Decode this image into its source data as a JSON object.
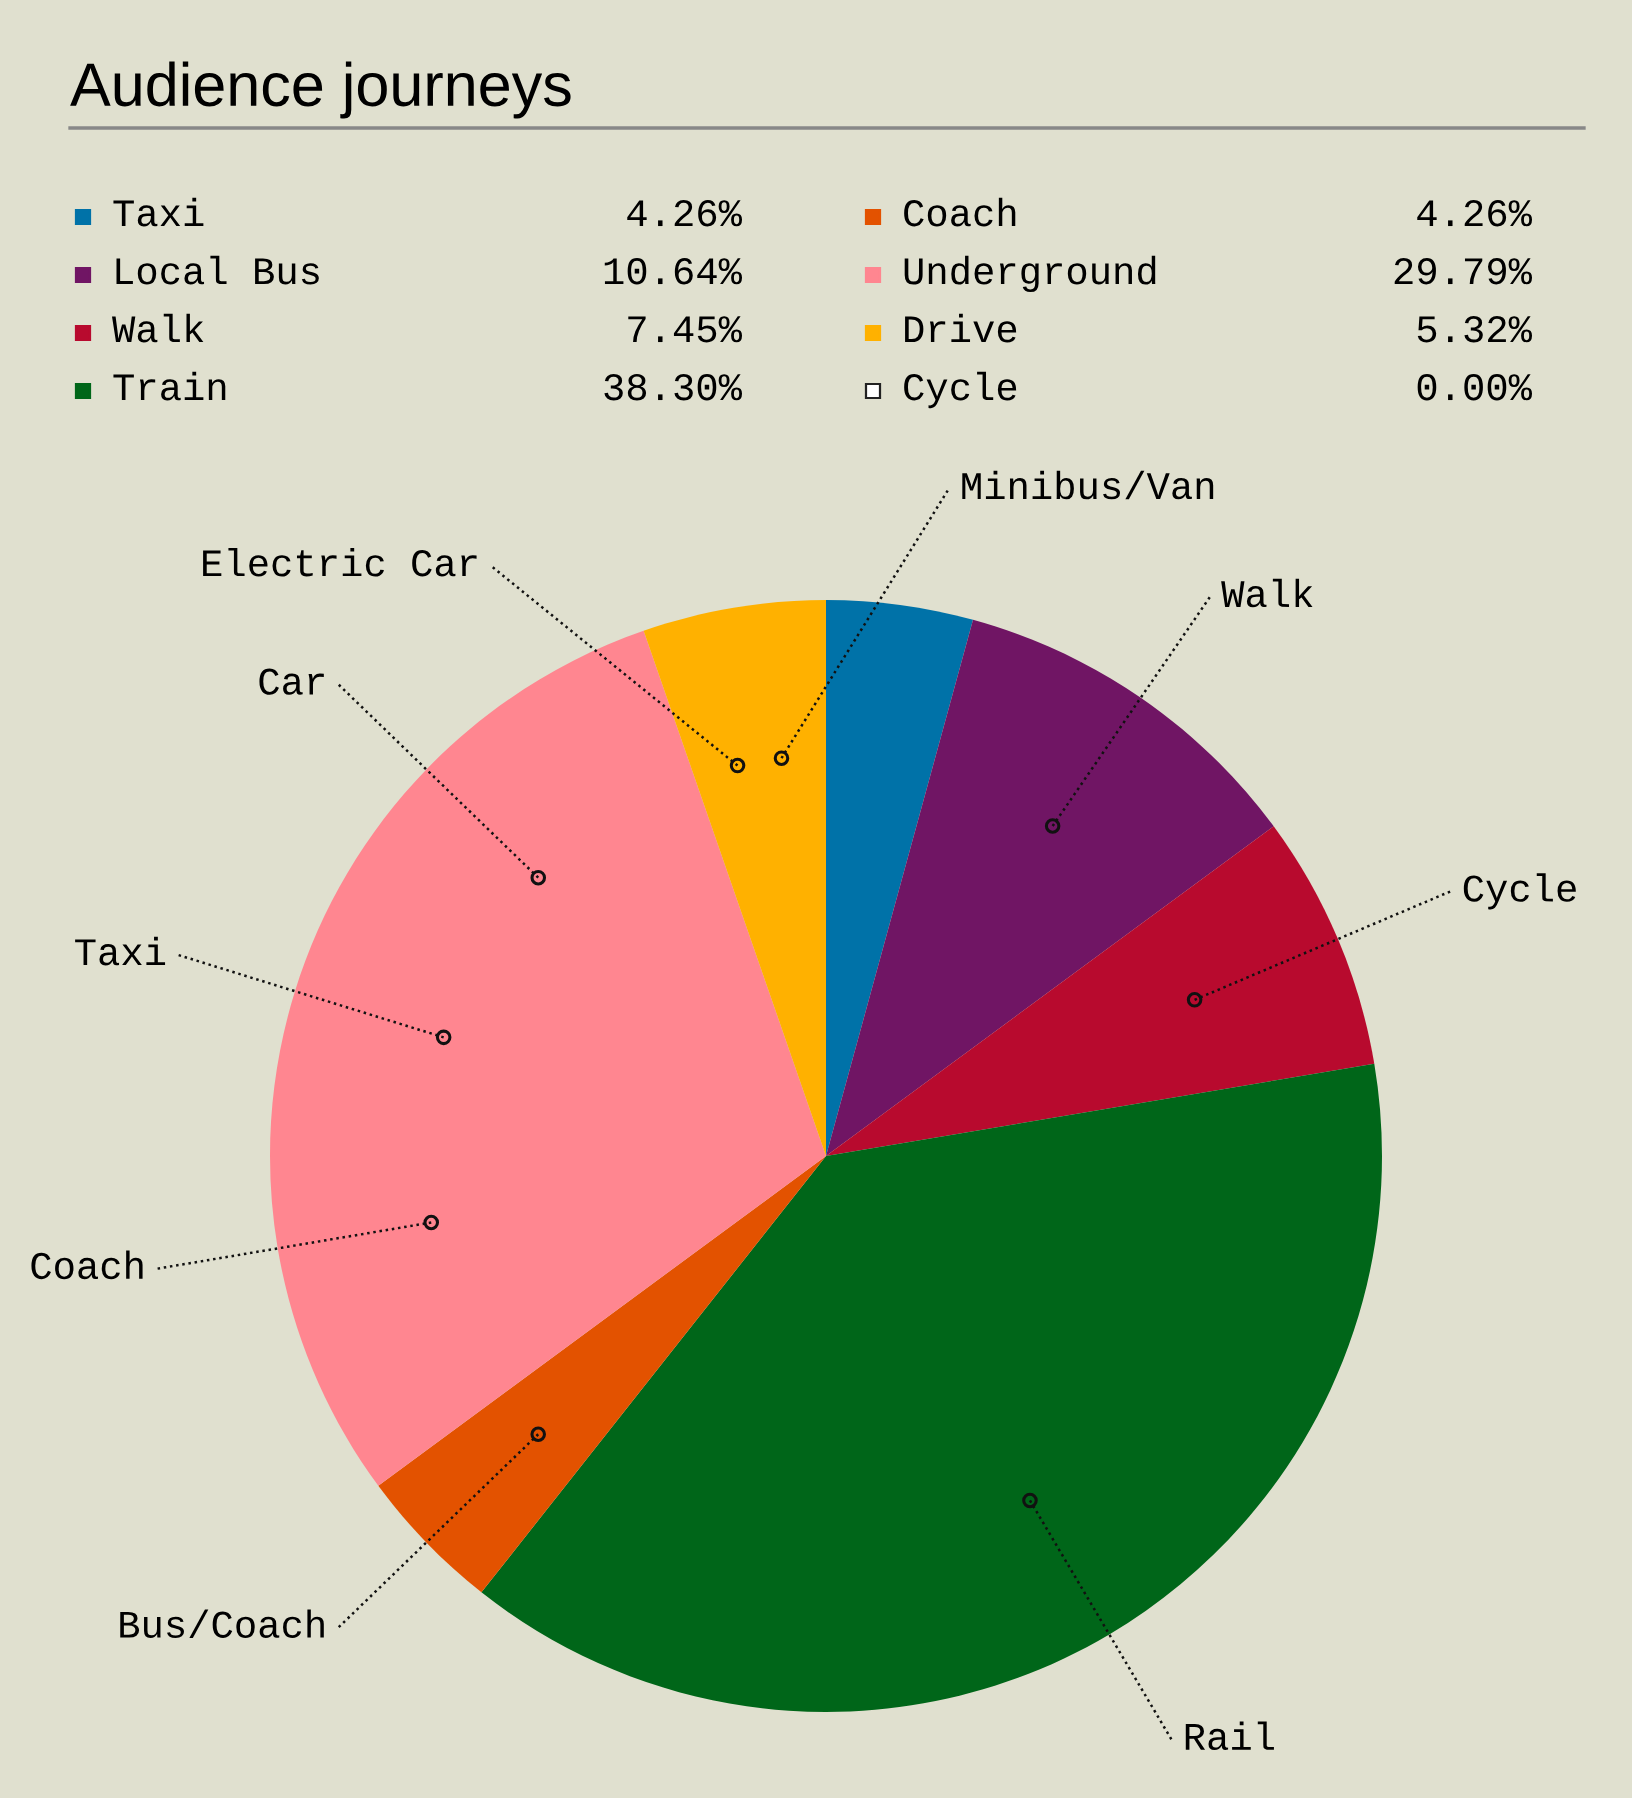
{
  "chart_data": {
    "type": "pie",
    "title": "Audience journeys",
    "categories": [
      "Taxi",
      "Local Bus",
      "Walk",
      "Train",
      "Coach",
      "Underground",
      "Drive",
      "Cycle"
    ],
    "values": [
      4.26,
      10.64,
      7.45,
      38.3,
      4.26,
      29.79,
      5.32,
      0.0
    ],
    "colors": [
      "#0072a8",
      "#701564",
      "#b80a2e",
      "#006619",
      "#e35200",
      "#ff8690",
      "#ffb100",
      "#ffffff"
    ],
    "value_labels": [
      "4.26%",
      "10.64%",
      "7.45%",
      "38.30%",
      "4.26%",
      "29.79%",
      "5.32%",
      "0.00%"
    ],
    "legend": "top",
    "annotations": [
      {
        "text": "Electric Car",
        "x": "Drive"
      },
      {
        "text": "Minibus/Van",
        "x": "Drive"
      },
      {
        "text": "Walk",
        "x": "Local Bus"
      },
      {
        "text": "Cycle",
        "x": "Walk"
      },
      {
        "text": "Rail",
        "x": "Train"
      },
      {
        "text": "Coach",
        "x": "Underground"
      },
      {
        "text": "Taxi",
        "x": "Underground"
      },
      {
        "text": "Car",
        "x": "Underground"
      },
      {
        "text": "Bus/Coach",
        "x": "Coach"
      }
    ]
  }
}
